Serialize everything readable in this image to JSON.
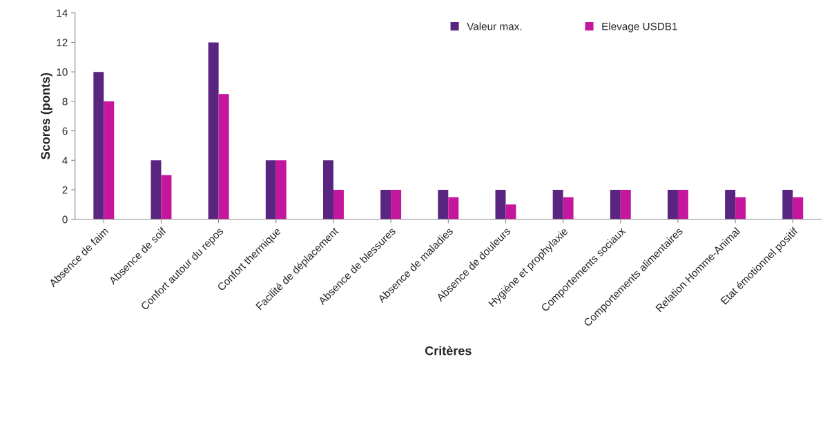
{
  "chart_data": {
    "type": "bar",
    "xlabel": "Critères",
    "ylabel": "Scores (ponts)",
    "categories": [
      "Absence de faim",
      "Absence de soif",
      "Confort autour du repos",
      "Confort thermique",
      "Facilité de déplacement",
      "Absence de blessures",
      "Absence de maladies",
      "Absence de douleurs",
      "Hygiène et prophylaxie",
      "Comportements sociaux",
      "Comportements alimentaires",
      "Relation Homme-Animal",
      "Etat émotionnel positif"
    ],
    "series": [
      {
        "name": "Valeur max.",
        "color": "#5a2580",
        "values": [
          10,
          4,
          12,
          4,
          4,
          2,
          2,
          2,
          2,
          2,
          2,
          2,
          2
        ]
      },
      {
        "name": "Elevage USDB1",
        "color": "#c4179e",
        "values": [
          8,
          3,
          8.5,
          4,
          2,
          2,
          1.5,
          1,
          1.5,
          2,
          2,
          1.5,
          1.5
        ]
      }
    ],
    "ylim": [
      0,
      14
    ],
    "yticks": [
      0,
      2,
      4,
      6,
      8,
      10,
      12,
      14
    ],
    "legend": "top right",
    "grid": false
  }
}
